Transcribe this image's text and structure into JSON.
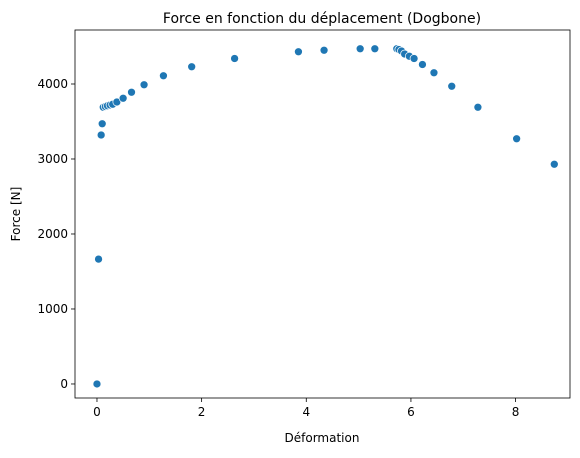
{
  "chart_data": {
    "type": "scatter",
    "title": "Force en fonction du déplacement (Dogbone)",
    "xlabel": "Déformation",
    "ylabel": "Force [N]",
    "x": [
      0,
      0.03,
      0.08,
      0.1,
      0.12,
      0.16,
      0.2,
      0.25,
      0.3,
      0.38,
      0.5,
      0.66,
      0.9,
      1.27,
      1.81,
      2.63,
      3.85,
      4.34,
      5.03,
      5.31,
      5.73,
      5.77,
      5.82,
      5.88,
      5.97,
      6.06,
      6.22,
      6.44,
      6.78,
      7.28,
      8.02,
      8.74
    ],
    "y": [
      0,
      1665,
      3320,
      3470,
      3690,
      3700,
      3710,
      3720,
      3730,
      3760,
      3810,
      3890,
      3990,
      4110,
      4230,
      4340,
      4430,
      4450,
      4470,
      4470,
      4470,
      4460,
      4440,
      4400,
      4370,
      4340,
      4260,
      4150,
      3970,
      3690,
      3270,
      2930
    ],
    "color": "#1f77b4",
    "xlim": [
      -0.42,
      9.04
    ],
    "xticks": [
      0,
      2,
      4,
      6,
      8
    ],
    "ylim": [
      -187,
      4720
    ],
    "yticks": [
      0,
      1000,
      2000,
      3000,
      4000
    ]
  }
}
